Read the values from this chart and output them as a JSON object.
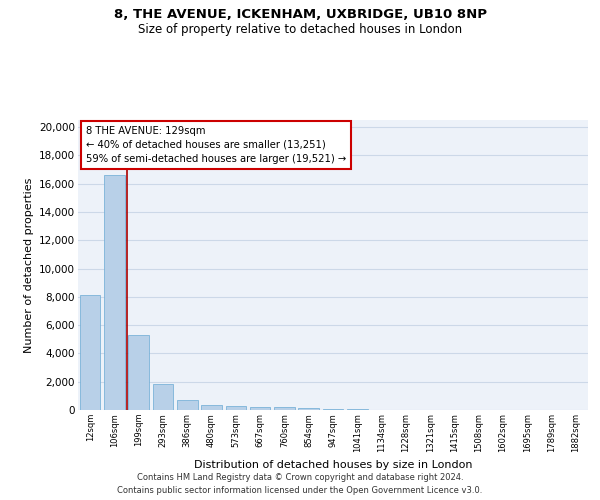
{
  "title1": "8, THE AVENUE, ICKENHAM, UXBRIDGE, UB10 8NP",
  "title2": "Size of property relative to detached houses in London",
  "xlabel": "Distribution of detached houses by size in London",
  "ylabel": "Number of detached properties",
  "categories": [
    "12sqm",
    "106sqm",
    "199sqm",
    "293sqm",
    "386sqm",
    "480sqm",
    "573sqm",
    "667sqm",
    "760sqm",
    "854sqm",
    "947sqm",
    "1041sqm",
    "1134sqm",
    "1228sqm",
    "1321sqm",
    "1415sqm",
    "1508sqm",
    "1602sqm",
    "1695sqm",
    "1789sqm",
    "1882sqm"
  ],
  "values": [
    8100,
    16600,
    5300,
    1850,
    700,
    380,
    290,
    240,
    200,
    130,
    80,
    50,
    30,
    20,
    15,
    10,
    8,
    6,
    5,
    4,
    3
  ],
  "bar_color": "#b8d0e8",
  "bar_edgecolor": "#6aaad4",
  "property_line_x": 1.5,
  "annotation_text": "8 THE AVENUE: 129sqm\n← 40% of detached houses are smaller (13,251)\n59% of semi-detached houses are larger (19,521) →",
  "annotation_box_color": "#ffffff",
  "annotation_box_edgecolor": "#cc0000",
  "red_line_color": "#aa0000",
  "ylim": [
    0,
    20500
  ],
  "yticks": [
    0,
    2000,
    4000,
    6000,
    8000,
    10000,
    12000,
    14000,
    16000,
    18000,
    20000
  ],
  "background_color": "#edf2f9",
  "grid_color": "#ccd8e8",
  "footer1": "Contains HM Land Registry data © Crown copyright and database right 2024.",
  "footer2": "Contains public sector information licensed under the Open Government Licence v3.0."
}
